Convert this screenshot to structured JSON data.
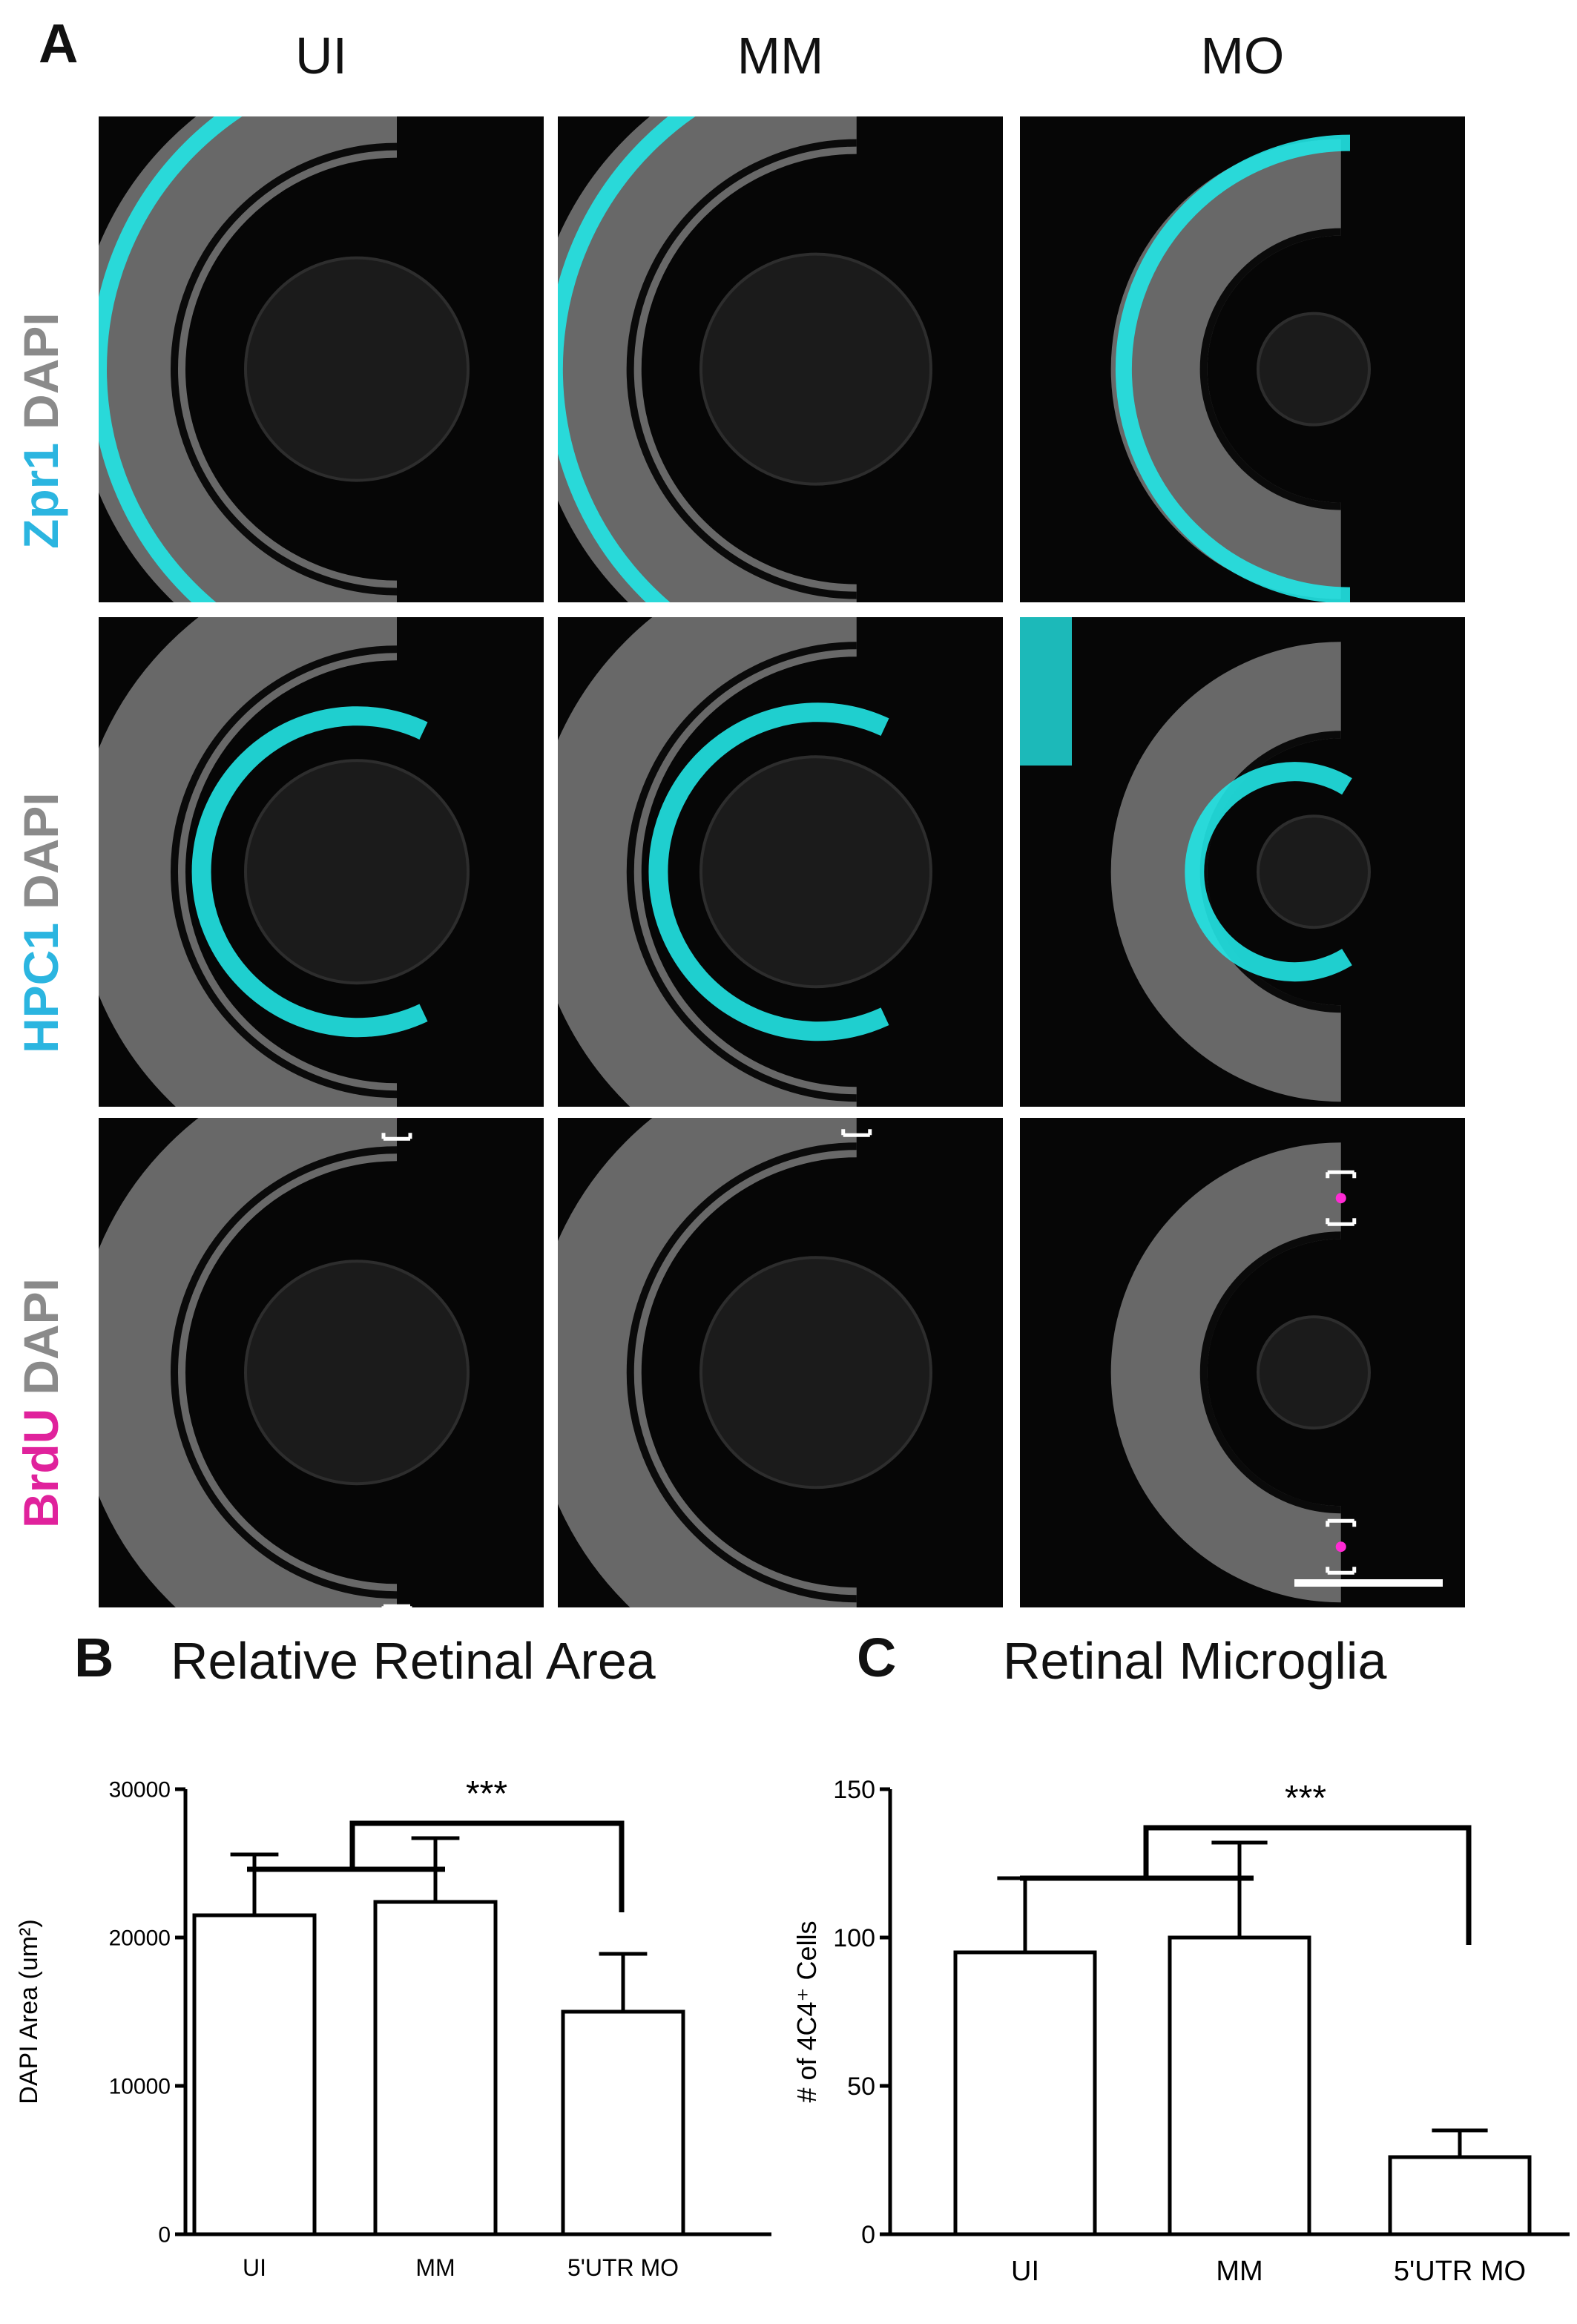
{
  "panel_a": {
    "letter": "A",
    "columns": [
      "UI",
      "MM",
      "MO"
    ],
    "rows": [
      {
        "stain": "Zpr1",
        "counterstain": "DAPI",
        "stain_color": "#2bb5e0",
        "signal_color": "#22e6e6"
      },
      {
        "stain": "HPC1",
        "counterstain": "DAPI",
        "stain_color": "#2bb5e0",
        "signal_color": "#22e6e6"
      },
      {
        "stain": "BrdU",
        "counterstain": "DAPI",
        "stain_color": "#e0229c",
        "signal_color": "#ff2ad4"
      }
    ],
    "dapi_color": "#8a8a8a"
  },
  "chart_data": [
    {
      "panel": "B",
      "type": "bar",
      "title": "Relative Retinal Area",
      "ylabel": "DAPI Area (um²)",
      "xlabel": "",
      "categories": [
        "UI",
        "MM",
        "5'UTR MO"
      ],
      "values": [
        21500,
        22400,
        15000
      ],
      "errors": [
        4100,
        4300,
        3900
      ],
      "ylim": [
        0,
        30000
      ],
      "yticks": [
        "0",
        "10000",
        "20000",
        "30000"
      ],
      "significance": "***",
      "grid": false
    },
    {
      "panel": "C",
      "type": "bar",
      "title": "Retinal Microglia",
      "ylabel": "# of 4C4⁺ Cells",
      "xlabel": "",
      "categories": [
        "UI",
        "MM",
        "5'UTR MO"
      ],
      "values": [
        95,
        100,
        26
      ],
      "errors": [
        25,
        32,
        9
      ],
      "ylim": [
        0,
        150
      ],
      "yticks": [
        "0",
        "50",
        "100",
        "150"
      ],
      "significance": "***",
      "grid": false
    }
  ]
}
